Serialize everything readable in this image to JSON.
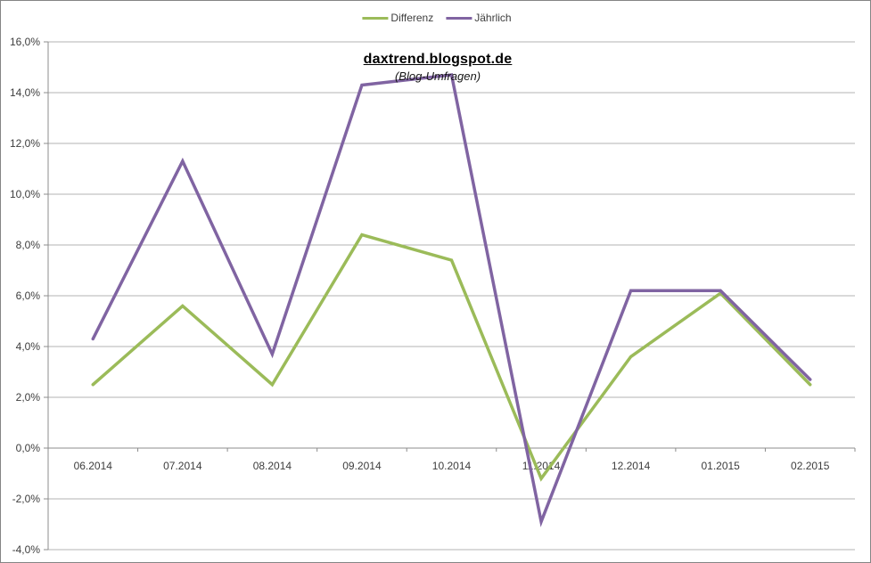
{
  "title": {
    "main": "daxtrend.blogspot.de",
    "subtitle": "(Blog-Umfragen)"
  },
  "legend": [
    {
      "label": "Differenz",
      "color": "#9BBB59"
    },
    {
      "label": "Jährlich",
      "color": "#8064A2"
    }
  ],
  "colors": {
    "series_differenz": "#9BBB59",
    "series_jaehrlich": "#8064A2",
    "gridline": "#b3b3b3",
    "axis_line": "#8c8c8c",
    "axis_label": "#3d3d3d",
    "frame_border": "#858585",
    "background": "#ffffff"
  },
  "chart_data": {
    "type": "line",
    "title": "daxtrend.blogspot.de",
    "subtitle": "(Blog-Umfragen)",
    "categories": [
      "06.2014",
      "07.2014",
      "08.2014",
      "09.2014",
      "10.2014",
      "11.2014",
      "12.2014",
      "01.2015",
      "02.2015"
    ],
    "series": [
      {
        "name": "Differenz",
        "color": "#9BBB59",
        "values": [
          2.5,
          5.6,
          2.5,
          8.4,
          7.4,
          -1.2,
          3.6,
          6.1,
          2.5
        ]
      },
      {
        "name": "Jährlich",
        "color": "#8064A2",
        "values": [
          4.3,
          11.3,
          3.7,
          14.3,
          14.7,
          -2.9,
          6.2,
          6.2,
          2.7
        ]
      }
    ],
    "xlabel": "",
    "ylabel": "",
    "ylim": [
      -4,
      16
    ],
    "ytick_step": 2,
    "ytick_labels": [
      "16,0%",
      "14,0%",
      "12,0%",
      "10,0%",
      "8,0%",
      "6,0%",
      "4,0%",
      "2,0%",
      "0,0%",
      "-2,0%",
      "-4,0%"
    ],
    "grid": true,
    "legend_position": "top"
  }
}
